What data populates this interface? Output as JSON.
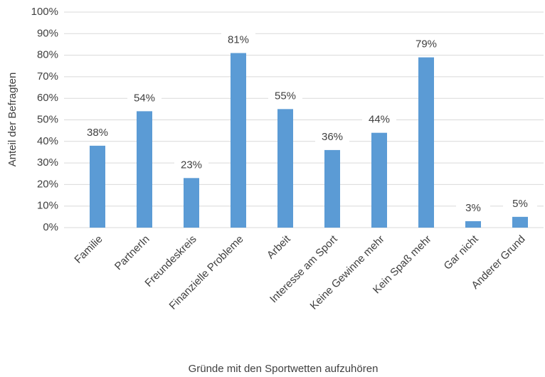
{
  "chart_data": {
    "type": "bar",
    "x_label": "Gründe mit den Sportwetten aufzuhören",
    "y_label": "Anteil der Befragten",
    "categories": [
      "Familie",
      "PartnerIn",
      "Freundeskreis",
      "Finanzielle Probleme",
      "Arbeit",
      "Interesse am Sport",
      "Keine Gewinne mehr",
      "Kein Spaß mehr",
      "Gar nicht",
      "Anderer Grund"
    ],
    "values": [
      38,
      54,
      23,
      81,
      55,
      36,
      44,
      79,
      3,
      5
    ],
    "value_labels": [
      "38%",
      "54%",
      "23%",
      "81%",
      "55%",
      "36%",
      "44%",
      "79%",
      "3%",
      "5%"
    ],
    "color": "#5b9bd5",
    "ylim": [
      0,
      100
    ],
    "yticks": [
      {
        "value": 0,
        "label": "0%"
      },
      {
        "value": 10,
        "label": "10%"
      },
      {
        "value": 20,
        "label": "20%"
      },
      {
        "value": 30,
        "label": "30%"
      },
      {
        "value": 40,
        "label": "40%"
      },
      {
        "value": 50,
        "label": "50%"
      },
      {
        "value": 60,
        "label": "60%"
      },
      {
        "value": 70,
        "label": "70%"
      },
      {
        "value": 80,
        "label": "80%"
      },
      {
        "value": 90,
        "label": "90%"
      },
      {
        "value": 100,
        "label": "100%"
      }
    ],
    "grid": true
  }
}
